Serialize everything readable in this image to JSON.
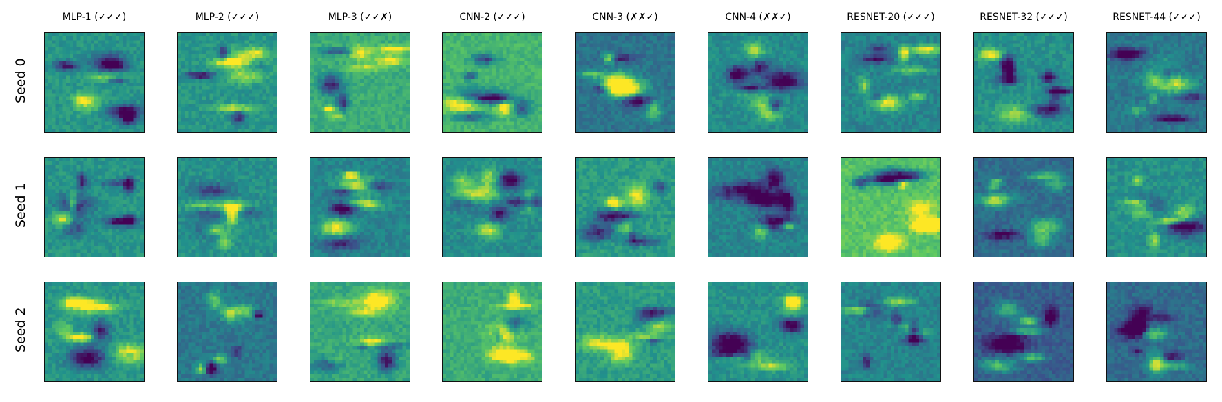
{
  "figure": {
    "columns": [
      "MLP-1 (✓✓✓)",
      "MLP-2 (✓✓✓)",
      "MLP-3 (✓✓✗)",
      "CNN-2 (✓✓✓)",
      "CNN-3 (✗✗✓)",
      "CNN-4 (✗✗✓)",
      "RESNET-20 (✓✓✓)",
      "RESNET-32 (✓✓✓)",
      "RESNET-44 (✓✓✓)"
    ],
    "rows": [
      "Seed 0",
      "Seed 1",
      "Seed 2"
    ],
    "colormap": [
      "#440154",
      "#3b528b",
      "#21918c",
      "#5ec962",
      "#fde725"
    ],
    "background_tone": [
      [
        0.52,
        0.52,
        0.62,
        0.66,
        0.38,
        0.48,
        0.45,
        0.5,
        0.4
      ],
      [
        0.52,
        0.5,
        0.45,
        0.48,
        0.55,
        0.45,
        0.72,
        0.35,
        0.5
      ],
      [
        0.52,
        0.4,
        0.6,
        0.62,
        0.55,
        0.5,
        0.45,
        0.3,
        0.35
      ]
    ]
  }
}
